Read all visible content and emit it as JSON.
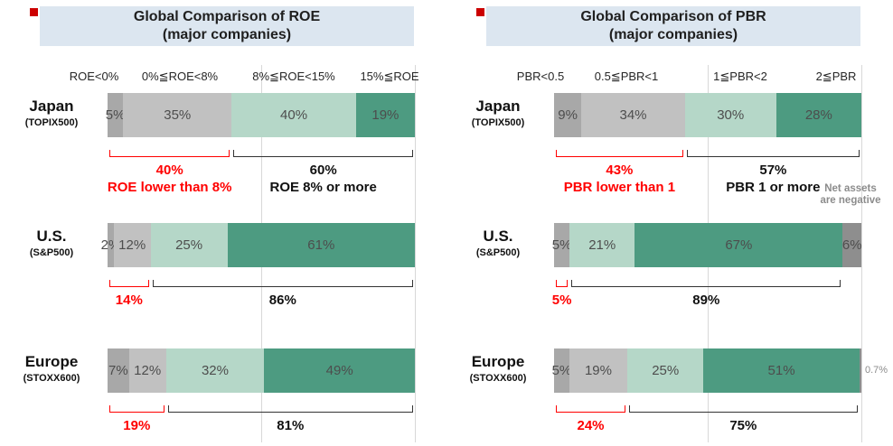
{
  "palette": {
    "red": "#ff0000",
    "bullet_red": "#cc0000",
    "title_bg": "#dce6f0",
    "gray_dark": "#a8a8a8",
    "gray_light": "#c1c1c1",
    "green_light": "#b5d7c8",
    "green_dark": "#4d9b81",
    "gray_negative": "#8e8e8e"
  },
  "chart_data": [
    {
      "type": "bar",
      "subtype": "horizontal-stacked-100pct",
      "title_lines": [
        "Global Comparison of ROE",
        "(major companies)"
      ],
      "categories": [
        "ROE<0%",
        "0%≦ROE<8%",
        "8%≦ROE<15%",
        "15%≦ROE"
      ],
      "unit": "%",
      "rows": [
        {
          "label": "Japan",
          "sublabel": "(TOPIX500)",
          "values": [
            5,
            35,
            40,
            19
          ],
          "value_labels": [
            "5%",
            "35%",
            "40%",
            "19%"
          ],
          "colors": [
            "gray_dark",
            "gray_light",
            "green_light",
            "green_dark"
          ],
          "red_bracket": {
            "from": 0,
            "to": 1,
            "label": "40%",
            "note": "ROE lower than 8%"
          },
          "black_bracket": {
            "from": 2,
            "to": 3,
            "label": "60%",
            "note": "ROE 8% or more"
          }
        },
        {
          "label": "U.S.",
          "sublabel": "(S&P500)",
          "values": [
            2,
            12,
            25,
            61
          ],
          "value_labels": [
            "2%",
            "12%",
            "25%",
            "61%"
          ],
          "colors": [
            "gray_dark",
            "gray_light",
            "green_light",
            "green_dark"
          ],
          "red_bracket": {
            "from": 0,
            "to": 1,
            "label": "14%"
          },
          "black_bracket": {
            "from": 2,
            "to": 3,
            "label": "86%"
          }
        },
        {
          "label": "Europe",
          "sublabel": "(STOXX600)",
          "values": [
            7,
            12,
            32,
            49
          ],
          "value_labels": [
            "7%",
            "12%",
            "32%",
            "49%"
          ],
          "colors": [
            "gray_dark",
            "gray_light",
            "green_light",
            "green_dark"
          ],
          "red_bracket": {
            "from": 0,
            "to": 1,
            "label": "19%"
          },
          "black_bracket": {
            "from": 2,
            "to": 3,
            "label": "81%"
          }
        }
      ]
    },
    {
      "type": "bar",
      "subtype": "horizontal-stacked-100pct",
      "title_lines": [
        "Global Comparison of PBR",
        "(major companies)"
      ],
      "categories": [
        "PBR<0.5",
        "0.5≦PBR<1",
        "1≦PBR<2",
        "2≦PBR"
      ],
      "unit": "%",
      "side_note": {
        "lines": [
          "Net assets",
          "are negative"
        ]
      },
      "rows": [
        {
          "label": "Japan",
          "sublabel": "(TOPIX500)",
          "values": [
            9,
            34,
            30,
            28
          ],
          "value_labels": [
            "9%",
            "34%",
            "30%",
            "28%"
          ],
          "colors": [
            "gray_dark",
            "gray_light",
            "green_light",
            "green_dark"
          ],
          "red_bracket": {
            "from": 0,
            "to": 1,
            "label": "43%",
            "note": "PBR lower than 1"
          },
          "black_bracket": {
            "from": 2,
            "to": 3,
            "label": "57%",
            "note": "PBR 1 or more"
          }
        },
        {
          "label": "U.S.",
          "sublabel": "(S&P500)",
          "values": [
            5,
            21,
            67,
            6
          ],
          "value_labels": [
            "5%",
            "21%",
            "67%",
            "6%"
          ],
          "colors": [
            "gray_dark",
            "green_light",
            "green_dark",
            "gray_negative"
          ],
          "red_bracket": {
            "from": 0,
            "to": 0,
            "label": "5%"
          },
          "black_bracket": {
            "from": 1,
            "to": 2,
            "label": "89%"
          }
        },
        {
          "label": "Europe",
          "sublabel": "(STOXX600)",
          "values": [
            5,
            19,
            25,
            51,
            0.7
          ],
          "value_labels": [
            "5%",
            "19%",
            "25%",
            "51%",
            ""
          ],
          "colors": [
            "gray_dark",
            "gray_light",
            "green_light",
            "green_dark",
            "gray_negative"
          ],
          "outside_label": "0.7%",
          "red_bracket": {
            "from": 0,
            "to": 1,
            "label": "24%"
          },
          "black_bracket": {
            "from": 2,
            "to": 3,
            "label": "75%"
          }
        }
      ]
    }
  ]
}
